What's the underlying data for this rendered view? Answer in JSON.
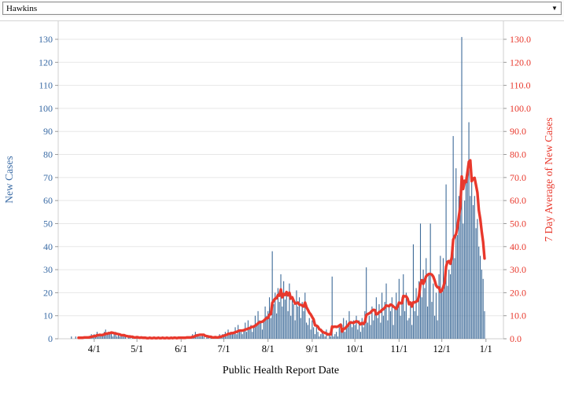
{
  "dropdown": {
    "value": "Hawkins",
    "arrow_glyph": "▼"
  },
  "chart_data": {
    "type": "bar",
    "title": "",
    "xlabel": "Public Health Report Date",
    "ylabel_left": "New Cases",
    "ylabel_right": "7 Day Average of New Cases",
    "legend_position": "none",
    "grid": true,
    "ylim": [
      0,
      130
    ],
    "y_left_tick_labels": [
      "0",
      "10",
      "20",
      "30",
      "40",
      "50",
      "60",
      "70",
      "80",
      "90",
      "100",
      "110",
      "120",
      "130"
    ],
    "y_right_tick_labels": [
      "0.0",
      "10.0",
      "20.0",
      "30.0",
      "40.0",
      "50.0",
      "60.0",
      "70.0",
      "80.0",
      "90.0",
      "100.0",
      "110.0",
      "120.0",
      "130.0"
    ],
    "x_tick_labels": [
      "4/1",
      "5/1",
      "6/1",
      "7/1",
      "8/1",
      "9/1",
      "10/1",
      "11/1",
      "12/1",
      "1/1"
    ],
    "x_tick_day_offsets": [
      17,
      47,
      78,
      108,
      139,
      170,
      200,
      231,
      261,
      292
    ],
    "series": [
      {
        "name": "New Cases",
        "mark": "bar",
        "axis": "left"
      },
      {
        "name": "7 Day Average of New Cases",
        "mark": "line",
        "axis": "right",
        "derivation": "trailing 7-day mean of New Cases"
      }
    ],
    "start_date": "3/15",
    "end_date": "12/31",
    "daily_new_cases": [
      0,
      1,
      0,
      0,
      1,
      0,
      1,
      0,
      1,
      0,
      1,
      1,
      0,
      1,
      1,
      2,
      1,
      2,
      1,
      3,
      1,
      2,
      1,
      2,
      3,
      4,
      2,
      3,
      2,
      3,
      1,
      2,
      3,
      1,
      2,
      1,
      1,
      1,
      2,
      1,
      0,
      1,
      1,
      0,
      1,
      0,
      1,
      1,
      0,
      0,
      1,
      0,
      0,
      1,
      0,
      0,
      1,
      0,
      0,
      1,
      0,
      0,
      1,
      0,
      0,
      1,
      0,
      0,
      1,
      0,
      0,
      1,
      0,
      1,
      0,
      0,
      1,
      0,
      1,
      0,
      1,
      0,
      1,
      1,
      0,
      1,
      2,
      1,
      3,
      2,
      2,
      1,
      1,
      2,
      1,
      0,
      1,
      1,
      0,
      1,
      0,
      1,
      1,
      0,
      1,
      2,
      1,
      2,
      2,
      3,
      1,
      4,
      2,
      3,
      2,
      3,
      5,
      2,
      6,
      4,
      3,
      2,
      4,
      7,
      3,
      8,
      5,
      6,
      3,
      5,
      10,
      6,
      12,
      8,
      7,
      4,
      8,
      14,
      10,
      12,
      18,
      9,
      38,
      15,
      20,
      11,
      22,
      16,
      28,
      14,
      25,
      17,
      20,
      12,
      24,
      10,
      18,
      15,
      8,
      21,
      14,
      18,
      9,
      16,
      12,
      20,
      7,
      6,
      9,
      4,
      8,
      5,
      2,
      6,
      3,
      1,
      2,
      3,
      2,
      1,
      4,
      0,
      2,
      1,
      27,
      1,
      2,
      3,
      1,
      5,
      4,
      6,
      9,
      3,
      8,
      5,
      12,
      7,
      5,
      8,
      6,
      10,
      4,
      8,
      3,
      9,
      5,
      12,
      31,
      7,
      10,
      6,
      14,
      8,
      11,
      18,
      9,
      15,
      7,
      20,
      10,
      16,
      24,
      8,
      14,
      12,
      18,
      6,
      13,
      20,
      15,
      26,
      10,
      18,
      28,
      12,
      20,
      8,
      9,
      15,
      6,
      41,
      12,
      22,
      10,
      25,
      50,
      18,
      30,
      22,
      35,
      14,
      28,
      50,
      16,
      24,
      10,
      20,
      8,
      28,
      36,
      20,
      35,
      25,
      67,
      23,
      30,
      28,
      40,
      88,
      35,
      74,
      45,
      62,
      58,
      131,
      50,
      60,
      70,
      75,
      94,
      62,
      68,
      58,
      62,
      48,
      52,
      40,
      36,
      30,
      26,
      12
    ],
    "colors": {
      "bar": "#3d6a98",
      "line": "#e8382c",
      "left_axis_text": "#3a6ba5",
      "right_axis_text": "#e8382c",
      "x_axis_text": "#000000",
      "gridline": "#e7e7e7",
      "plot_border": "#cfcfcf",
      "tick_mark": "#9a9a9a"
    }
  }
}
